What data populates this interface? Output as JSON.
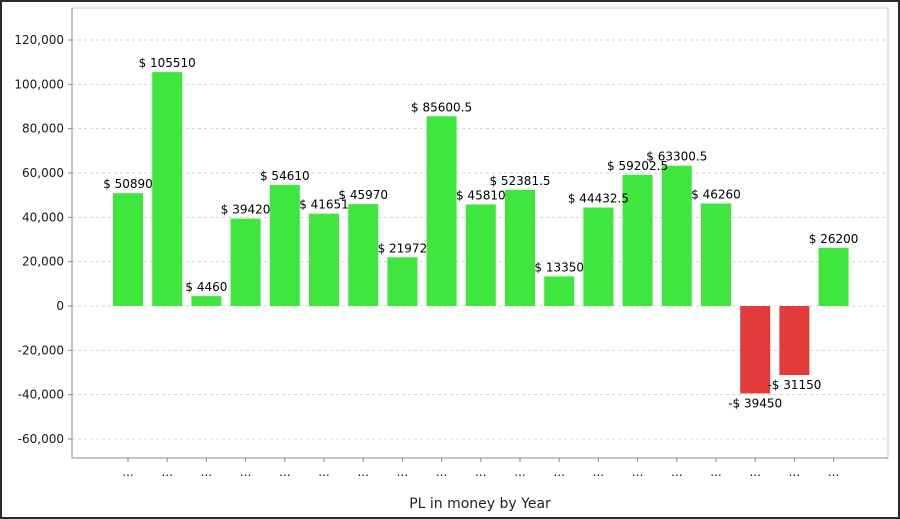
{
  "chart_data": {
    "type": "bar",
    "xlabel": "PL in money by Year",
    "categories": [
      "...",
      "...",
      "...",
      "...",
      "...",
      "...",
      "...",
      "...",
      "...",
      "...",
      "...",
      "...",
      "...",
      "...",
      "...",
      "...",
      "...",
      "...",
      "..."
    ],
    "values": [
      50890,
      105510,
      4460,
      39420,
      54610,
      41651,
      45970,
      21972,
      85600.5,
      45810,
      52381.5,
      13350,
      44432.5,
      59202.5,
      63300.5,
      46260,
      -39450,
      -31150,
      26200
    ],
    "labels": [
      "$ 50890",
      "$ 105510",
      "$ 4460",
      "$ 39420",
      "$ 54610",
      "$ 41651",
      "$ 45970",
      "$ 21972",
      "$ 85600.5",
      "$ 45810",
      "$ 52381.5",
      "$ 13350",
      "$ 44432.5",
      "$ 59202.5",
      "$ 63300.5",
      "$ 46260",
      "-$ 39450",
      "-$ 31150",
      "$ 26200"
    ],
    "ylim": [
      -60000,
      120000
    ],
    "yticks": [
      120000,
      100000,
      80000,
      60000,
      40000,
      20000,
      0,
      -20000,
      -40000,
      -60000
    ],
    "ytick_labels": [
      "120,000",
      "100,000",
      "80,000",
      "60,000",
      "40,000",
      "20,000",
      "0",
      "-20,000",
      "-40,000",
      "-60,000"
    ],
    "grid": true,
    "colors": {
      "positive": "#3ee63e",
      "negative": "#e33b3b",
      "grid": "#d4d4d4",
      "axis": "#8a8a8a"
    }
  }
}
